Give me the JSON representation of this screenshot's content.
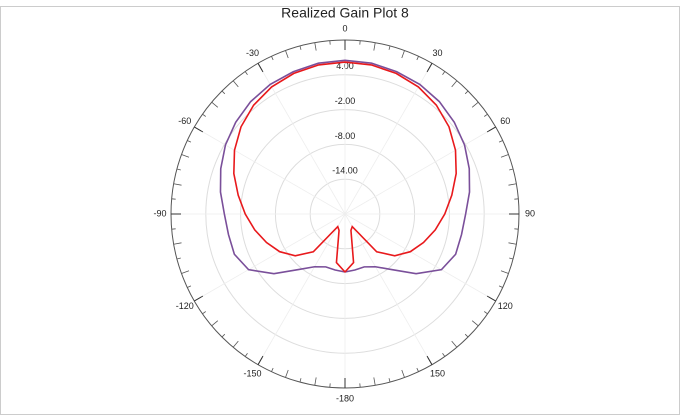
{
  "chart_data": {
    "type": "polar",
    "title": "Realized Gain Plot 8",
    "theta": [
      -180,
      -170,
      -160,
      -150,
      -140,
      -130,
      -120,
      -110,
      -100,
      -90,
      -80,
      -70,
      -60,
      -50,
      -40,
      -30,
      -20,
      -10,
      0,
      10,
      20,
      30,
      40,
      50,
      60,
      70,
      80,
      90,
      100,
      110,
      120,
      130,
      140,
      150,
      160,
      170,
      180
    ],
    "series": [
      {
        "color": "#7a4f9a",
        "values": [
          -10,
          -10.2,
          -10.3,
          -9.5,
          -7.5,
          -4,
          -0.8,
          0.3,
          0.4,
          0.8,
          1.8,
          2.8,
          3.8,
          4.6,
          5.3,
          5.8,
          6.1,
          6.4,
          6.5,
          6.4,
          6.1,
          5.8,
          5.3,
          4.6,
          3.8,
          2.8,
          1.8,
          0.8,
          0.4,
          0.3,
          -0.8,
          -4,
          -7.5,
          -9.5,
          -10.3,
          -10.2,
          -10
        ]
      },
      {
        "color": "#e8191c",
        "values": [
          -10,
          -11.5,
          -17,
          -17.5,
          -11.5,
          -8.8,
          -7,
          -5.6,
          -4.2,
          -2.8,
          -1.3,
          0.4,
          2,
          3.4,
          4.5,
          5.3,
          5.8,
          6.1,
          6.2,
          6.1,
          5.8,
          5.3,
          4.5,
          3.4,
          2,
          0.4,
          -1.3,
          -2.8,
          -4.2,
          -5.6,
          -7,
          -8.8,
          -11.5,
          -17.5,
          -17,
          -11.5,
          -10
        ]
      }
    ],
    "rlim": [
      -20,
      10
    ],
    "rticks": [
      {
        "value": -14,
        "label": "-14.00"
      },
      {
        "value": -8,
        "label": "-8.00"
      },
      {
        "value": -2,
        "label": "-2.00"
      },
      {
        "value": 4,
        "label": "4.00"
      }
    ],
    "thetaticks": [
      -180,
      -150,
      -120,
      -90,
      -60,
      -30,
      0,
      30,
      60,
      90,
      120,
      150
    ],
    "grid": true
  }
}
